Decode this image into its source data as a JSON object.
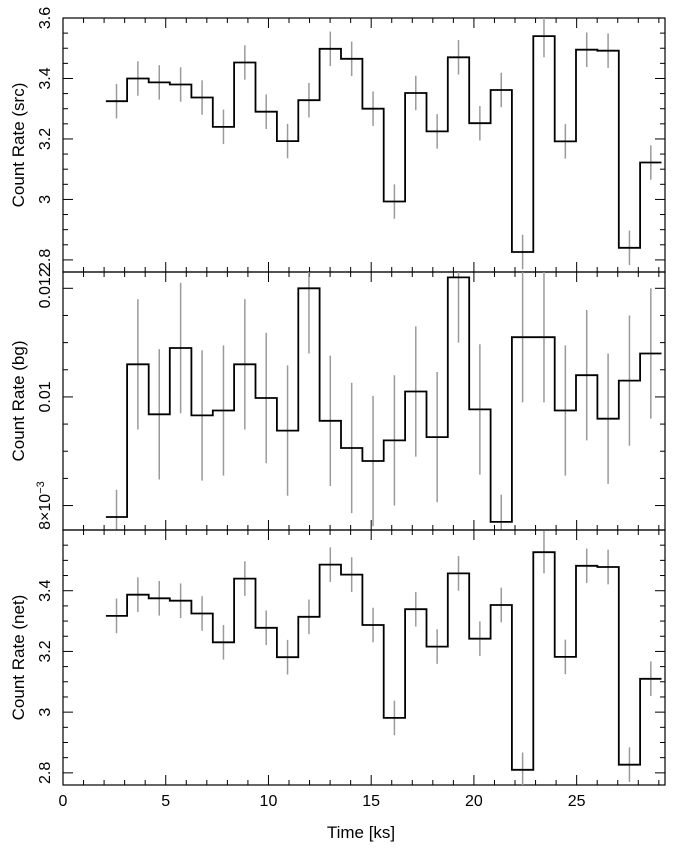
{
  "chart_data": {
    "type": "step",
    "x_axis": {
      "label": "Time [ks]",
      "range": [
        0,
        29.3
      ],
      "ticks": [
        0,
        5,
        10,
        15,
        20,
        25
      ],
      "tick_labels": [
        "0",
        "5",
        "10",
        "15",
        "20",
        "25"
      ]
    },
    "x": [
      2.09,
      3.12,
      4.17,
      5.2,
      6.25,
      7.29,
      8.33,
      9.37,
      10.41,
      11.45,
      12.49,
      13.53,
      14.57,
      15.61,
      16.65,
      17.69,
      18.73,
      19.77,
      20.81,
      21.85,
      22.89,
      23.93,
      24.97,
      26.01,
      27.05,
      28.09
    ],
    "bin_edges": [
      2.09,
      3.12,
      4.17,
      5.2,
      6.25,
      7.29,
      8.33,
      9.37,
      10.41,
      11.45,
      12.49,
      13.53,
      14.57,
      15.61,
      16.65,
      17.69,
      18.73,
      19.77,
      20.81,
      21.85,
      22.89,
      23.93,
      24.97,
      26.01,
      27.05,
      28.09,
      29.13
    ],
    "panels": [
      {
        "ylabel": "Count Rate (src)",
        "ylim": [
          2.76,
          3.6
        ],
        "yticks": [
          2.8,
          3,
          3.2,
          3.4,
          3.6
        ],
        "ytick_labels": [
          "2.8",
          "3",
          "3.2",
          "3.4",
          "3.6"
        ],
        "values": [
          3.325,
          3.4,
          3.387,
          3.38,
          3.337,
          3.24,
          3.453,
          3.29,
          3.193,
          3.328,
          3.498,
          3.465,
          3.3,
          2.993,
          3.352,
          3.225,
          3.47,
          3.252,
          3.362,
          2.826,
          3.54,
          3.192,
          3.495,
          3.492,
          2.84,
          3.122
        ],
        "errors": [
          0.057,
          0.057,
          0.057,
          0.057,
          0.057,
          0.057,
          0.057,
          0.057,
          0.057,
          0.057,
          0.057,
          0.057,
          0.057,
          0.057,
          0.057,
          0.057,
          0.057,
          0.057,
          0.057,
          0.057,
          0.07,
          0.057,
          0.057,
          0.057,
          0.057,
          0.057
        ]
      },
      {
        "ylabel": "Count Rate (bg)",
        "ylim": [
          0.00755,
          0.0123
        ],
        "yticks": [
          0.008,
          0.01,
          0.012
        ],
        "ytick_labels": [
          "8×10⁻³",
          "0.01",
          "0.012"
        ],
        "values": [
          0.00779,
          0.0106,
          0.00968,
          0.0109,
          0.00966,
          0.00975,
          0.0106,
          0.00998,
          0.00938,
          0.012,
          0.00956,
          0.00906,
          0.00882,
          0.0092,
          0.0101,
          0.00926,
          0.0122,
          0.00977,
          0.0077,
          0.0111,
          0.0111,
          0.00975,
          0.0104,
          0.0096,
          0.0103,
          0.0108
        ],
        "errors": [
          0.0005,
          0.0012,
          0.0012,
          0.0012,
          0.0012,
          0.0012,
          0.0012,
          0.0012,
          0.0012,
          0.0012,
          0.0012,
          0.0012,
          0.0012,
          0.0012,
          0.0012,
          0.0012,
          0.0012,
          0.0012,
          0.0005,
          0.0012,
          0.0012,
          0.0012,
          0.0012,
          0.0012,
          0.0012,
          0.0012
        ]
      },
      {
        "ylabel": "Count Rate (net)",
        "ylim": [
          2.76,
          3.6
        ],
        "yticks": [
          2.8,
          3,
          3.2,
          3.4
        ],
        "ytick_labels": [
          "2.8",
          "3",
          "3.2",
          "3.4"
        ],
        "values": [
          3.317,
          3.387,
          3.375,
          3.367,
          3.325,
          3.23,
          3.44,
          3.278,
          3.181,
          3.314,
          3.486,
          3.453,
          3.287,
          2.981,
          3.339,
          3.216,
          3.457,
          3.242,
          3.353,
          2.81,
          3.527,
          3.182,
          3.482,
          3.478,
          2.827,
          3.11
        ],
        "errors": [
          0.057,
          0.057,
          0.057,
          0.057,
          0.057,
          0.057,
          0.057,
          0.057,
          0.057,
          0.057,
          0.057,
          0.057,
          0.057,
          0.057,
          0.057,
          0.057,
          0.057,
          0.057,
          0.057,
          0.057,
          0.07,
          0.057,
          0.057,
          0.057,
          0.057,
          0.057
        ]
      }
    ],
    "colors": {
      "line": "#000000",
      "error_bars": "#9a9a9a"
    },
    "grid": false
  }
}
